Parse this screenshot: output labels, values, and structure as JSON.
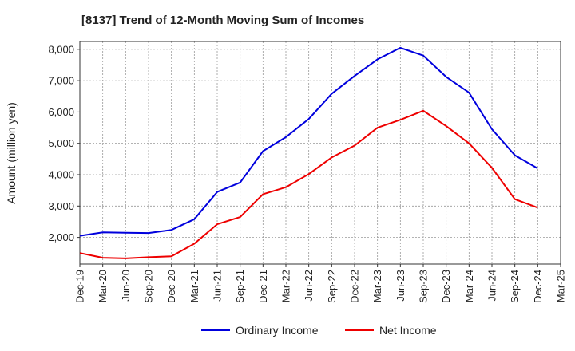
{
  "chart_data": {
    "type": "line",
    "title": "[8137]  Trend of 12-Month Moving Sum of Incomes",
    "xlabel": "",
    "ylabel": "Amount (million yen)",
    "ylim": [
      1150,
      8250
    ],
    "yticks": [
      2000,
      3000,
      4000,
      5000,
      6000,
      7000,
      8000
    ],
    "ytick_labels": [
      "2,000",
      "3,000",
      "4,000",
      "5,000",
      "6,000",
      "7,000",
      "8,000"
    ],
    "categories": [
      "Dec-19",
      "Mar-20",
      "Jun-20",
      "Sep-20",
      "Dec-20",
      "Mar-21",
      "Jun-21",
      "Sep-21",
      "Dec-21",
      "Mar-22",
      "Jun-22",
      "Sep-22",
      "Dec-22",
      "Mar-23",
      "Jun-23",
      "Sep-23",
      "Dec-23",
      "Mar-24",
      "Jun-24",
      "Sep-24",
      "Dec-24",
      "Mar-25"
    ],
    "grid": true,
    "legend_position": "bottom-center",
    "series": [
      {
        "name": "Ordinary Income",
        "color": "#0000dd",
        "values": [
          2050,
          2160,
          2150,
          2140,
          2240,
          2580,
          3450,
          3750,
          4750,
          5200,
          5780,
          6580,
          7150,
          7680,
          8050,
          7800,
          7120,
          6620,
          5450,
          4620,
          4200,
          null
        ]
      },
      {
        "name": "Net Income",
        "color": "#ee0000",
        "values": [
          1500,
          1350,
          1330,
          1370,
          1400,
          1800,
          2420,
          2650,
          3380,
          3600,
          4020,
          4550,
          4930,
          5500,
          5750,
          6040,
          5550,
          5000,
          4220,
          3220,
          2950,
          null
        ]
      }
    ]
  }
}
